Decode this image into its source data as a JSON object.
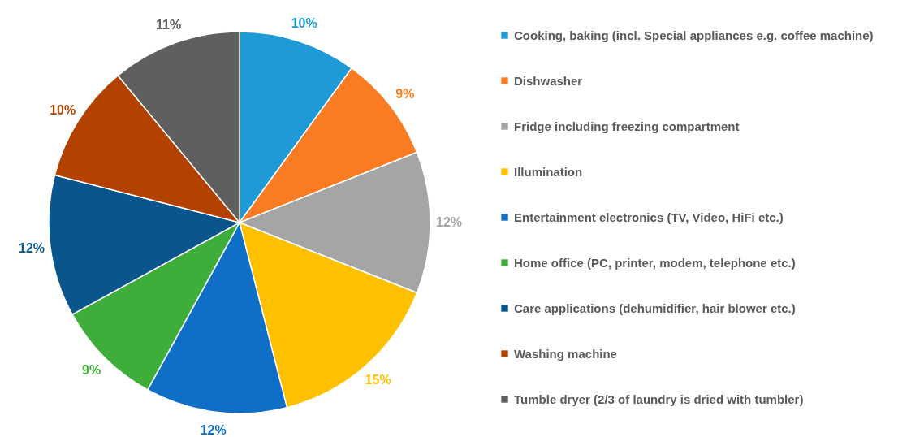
{
  "chart_data": {
    "type": "pie",
    "categories": [
      "Cooking, baking (incl. Special appliances e.g. coffee machine)",
      "Dishwasher",
      "Fridge including  freezing compartment",
      "Illumination",
      " Entertainment electronics (TV, Video, HiFi etc.)",
      "Home office (PC, printer, modem, telephone etc.)",
      "Care applications (dehumidifier, hair blower etc.)",
      "Washing machine",
      "Tumble dryer (2/3 of laundry is dried with tumbler)"
    ],
    "values": [
      10,
      9,
      12,
      15,
      12,
      9,
      12,
      10,
      11
    ],
    "value_labels": [
      "10%",
      "9%",
      "12%",
      "15%",
      "12%",
      "9%",
      "12%",
      "10%",
      "11%"
    ],
    "colors": [
      "#1f9ad6",
      "#f97b22",
      "#a5a5a5",
      "#ffc000",
      "#0f6fc6",
      "#3fad3a",
      "#0a558c",
      "#b34200",
      "#5f5f5f"
    ],
    "legend": "right"
  }
}
